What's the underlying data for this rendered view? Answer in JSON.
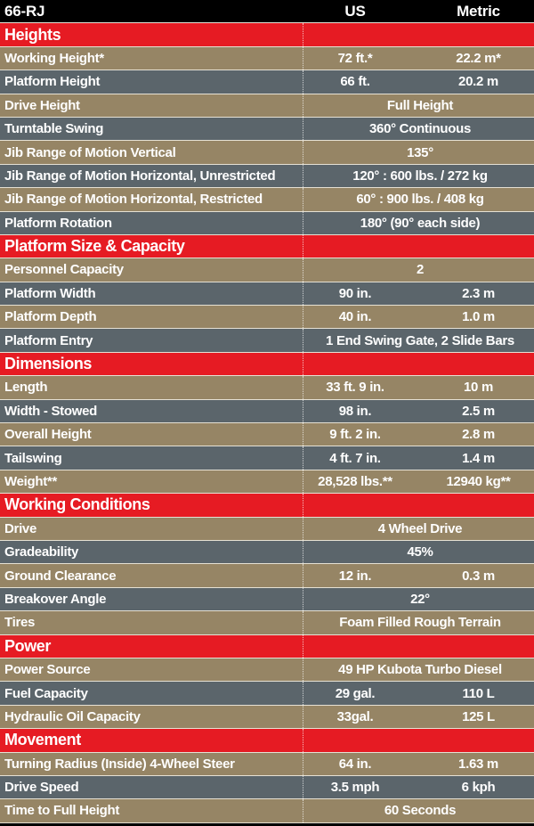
{
  "header": {
    "model": "66-RJ",
    "us": "US",
    "metric": "Metric"
  },
  "sections": [
    {
      "title": "Heights",
      "rows": [
        {
          "label": "Working Height*",
          "us": "72 ft.*",
          "metric": "22.2 m*"
        },
        {
          "label": "Platform Height",
          "us": "66 ft.",
          "metric": "20.2 m"
        },
        {
          "label": "Drive Height",
          "value": "Full Height"
        },
        {
          "label": "Turntable Swing",
          "value": "360° Continuous"
        },
        {
          "label": "Jib Range of Motion Vertical",
          "value": "135°"
        },
        {
          "label": "Jib Range of Motion Horizontal, Unrestricted",
          "value": "120° :  600 lbs. / 272 kg"
        },
        {
          "label": "Jib Range of Motion Horizontal, Restricted",
          "value": "60° : 900 lbs.  / 408 kg"
        },
        {
          "label": "Platform Rotation",
          "value": "180° (90° each side)"
        }
      ]
    },
    {
      "title": "Platform Size & Capacity",
      "rows": [
        {
          "label": "Personnel Capacity",
          "value": "2"
        },
        {
          "label": "Platform Width",
          "us": "90 in.",
          "metric": "2.3 m"
        },
        {
          "label": "Platform Depth",
          "us": "40 in.",
          "metric": "1.0 m"
        },
        {
          "label": "Platform Entry",
          "value": "1 End Swing Gate, 2 Slide Bars"
        }
      ]
    },
    {
      "title": "Dimensions",
      "rows": [
        {
          "label": "Length",
          "us": "33 ft. 9 in.",
          "metric": "10 m"
        },
        {
          "label": "Width - Stowed",
          "us": "98 in.",
          "metric": "2.5 m"
        },
        {
          "label": "Overall Height",
          "us": "9 ft. 2 in.",
          "metric": "2.8 m"
        },
        {
          "label": "Tailswing",
          "us": "4 ft. 7 in.",
          "metric": "1.4 m"
        },
        {
          "label": "Weight**",
          "us": "28,528 lbs.**",
          "metric": "12940 kg**"
        }
      ]
    },
    {
      "title": "Working Conditions",
      "rows": [
        {
          "label": "Drive",
          "value": "4 Wheel Drive"
        },
        {
          "label": "Gradeability",
          "value": "45%"
        },
        {
          "label": "Ground Clearance",
          "us": "12 in.",
          "metric": "0.3 m"
        },
        {
          "label": "Breakover Angle",
          "value": "22°"
        },
        {
          "label": "Tires",
          "value": "Foam Filled Rough Terrain"
        }
      ]
    },
    {
      "title": "Power",
      "rows": [
        {
          "label": "Power Source",
          "value": "49 HP Kubota Turbo Diesel"
        },
        {
          "label": "Fuel Capacity",
          "us": "29 gal.",
          "metric": "110 L"
        },
        {
          "label": "Hydraulic Oil Capacity",
          "us": "33gal.",
          "metric": "125 L"
        }
      ]
    },
    {
      "title": "Movement",
      "rows": [
        {
          "label": "Turning Radius (Inside) 4-Wheel Steer",
          "us": "64 in.",
          "metric": "1.63 m"
        },
        {
          "label": "Drive Speed",
          "us": "3.5 mph",
          "metric": "6 kph"
        },
        {
          "label": "Time to Full Height",
          "value": "60 Seconds"
        }
      ]
    }
  ]
}
